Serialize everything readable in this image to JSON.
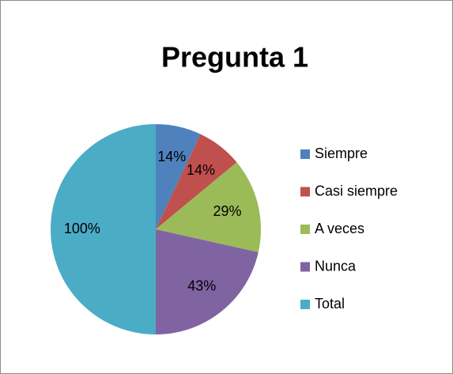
{
  "chart_data": {
    "type": "pie",
    "title": "Pregunta 1",
    "categories": [
      "Siempre",
      "Casi siempre",
      "A veces",
      "Nunca",
      "Total"
    ],
    "values": [
      14,
      14,
      29,
      43,
      100
    ],
    "value_labels": [
      "14%",
      "14%",
      "29%",
      "43%",
      "100%"
    ],
    "colors": [
      "#4f81bd",
      "#c0504d",
      "#9bbb59",
      "#8064a2",
      "#4bacc6"
    ],
    "legend": "right"
  }
}
